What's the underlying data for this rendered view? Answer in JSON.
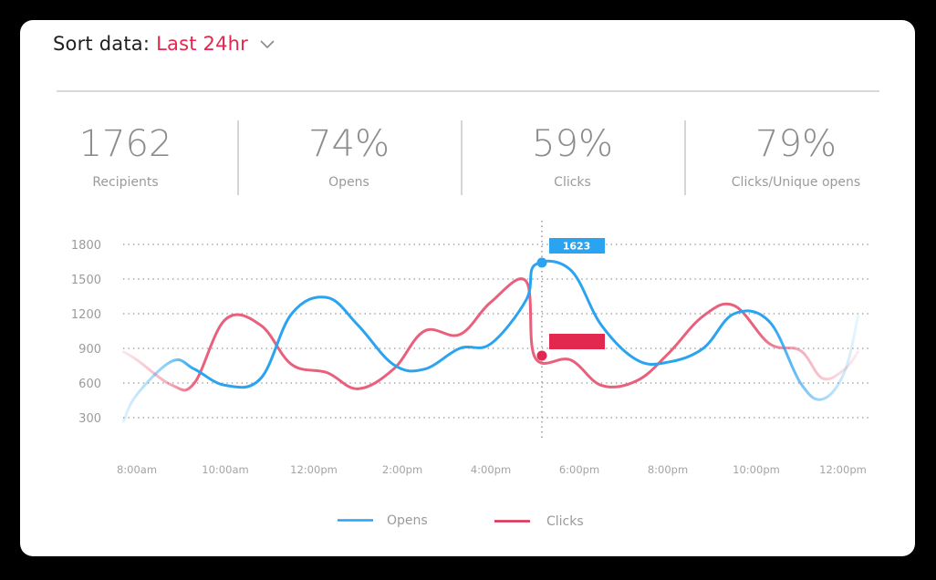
{
  "header": {
    "sort_label": "Sort data:",
    "sort_value": "Last 24hr",
    "chevron_icon": "chevron-down-icon"
  },
  "stats": [
    {
      "value": "1762",
      "label": "Recipients"
    },
    {
      "value": "74%",
      "label": "Opens"
    },
    {
      "value": "59%",
      "label": "Clicks"
    },
    {
      "value": "79%",
      "label": "Clicks/Unique opens"
    }
  ],
  "colors": {
    "opens": "#2aa3f0",
    "clicks": "#e8607c",
    "clicks_marker": "#e2284e",
    "accent": "#e2284e",
    "grid": "#a6a6a6"
  },
  "tooltip": {
    "opens_value": "1623",
    "clicks_value": ""
  },
  "chart_data": {
    "type": "line",
    "title": "",
    "xlabel": "",
    "ylabel": "",
    "ylim": [
      300,
      1800
    ],
    "yticks": [
      1800,
      1500,
      1200,
      900,
      600,
      300
    ],
    "xticks": [
      "8:00am",
      "10:00am",
      "12:00pm",
      "2:00pm",
      "4:00pm",
      "6:00pm",
      "8:00pm",
      "10:00pm",
      "12:00pm"
    ],
    "grid": "horizontal-dotted",
    "legend_position": "bottom",
    "hover_x": "5:00pm",
    "x_hours": [
      7.7,
      8.0,
      8.8,
      9.3,
      10.0,
      10.8,
      11.5,
      12.3,
      13.0,
      13.8,
      14.5,
      15.3,
      16.0,
      16.8,
      17.0,
      17.8,
      18.5,
      19.3,
      20.0,
      20.8,
      21.5,
      22.3,
      23.0,
      23.5,
      24.0,
      24.3
    ],
    "series": [
      {
        "name": "Opens",
        "values": [
          270,
          500,
          790,
          720,
          580,
          640,
          1200,
          1340,
          1100,
          760,
          720,
          900,
          940,
          1320,
          1623,
          1580,
          1100,
          800,
          780,
          900,
          1200,
          1130,
          600,
          460,
          700,
          1180
        ]
      },
      {
        "name": "Clicks",
        "values": [
          870,
          800,
          580,
          600,
          1150,
          1100,
          760,
          690,
          550,
          720,
          1050,
          1020,
          1300,
          1480,
          820,
          800,
          580,
          620,
          850,
          1180,
          1270,
          940,
          880,
          640,
          720,
          870
        ]
      }
    ]
  },
  "legend": [
    {
      "name": "Opens"
    },
    {
      "name": "Clicks"
    }
  ]
}
